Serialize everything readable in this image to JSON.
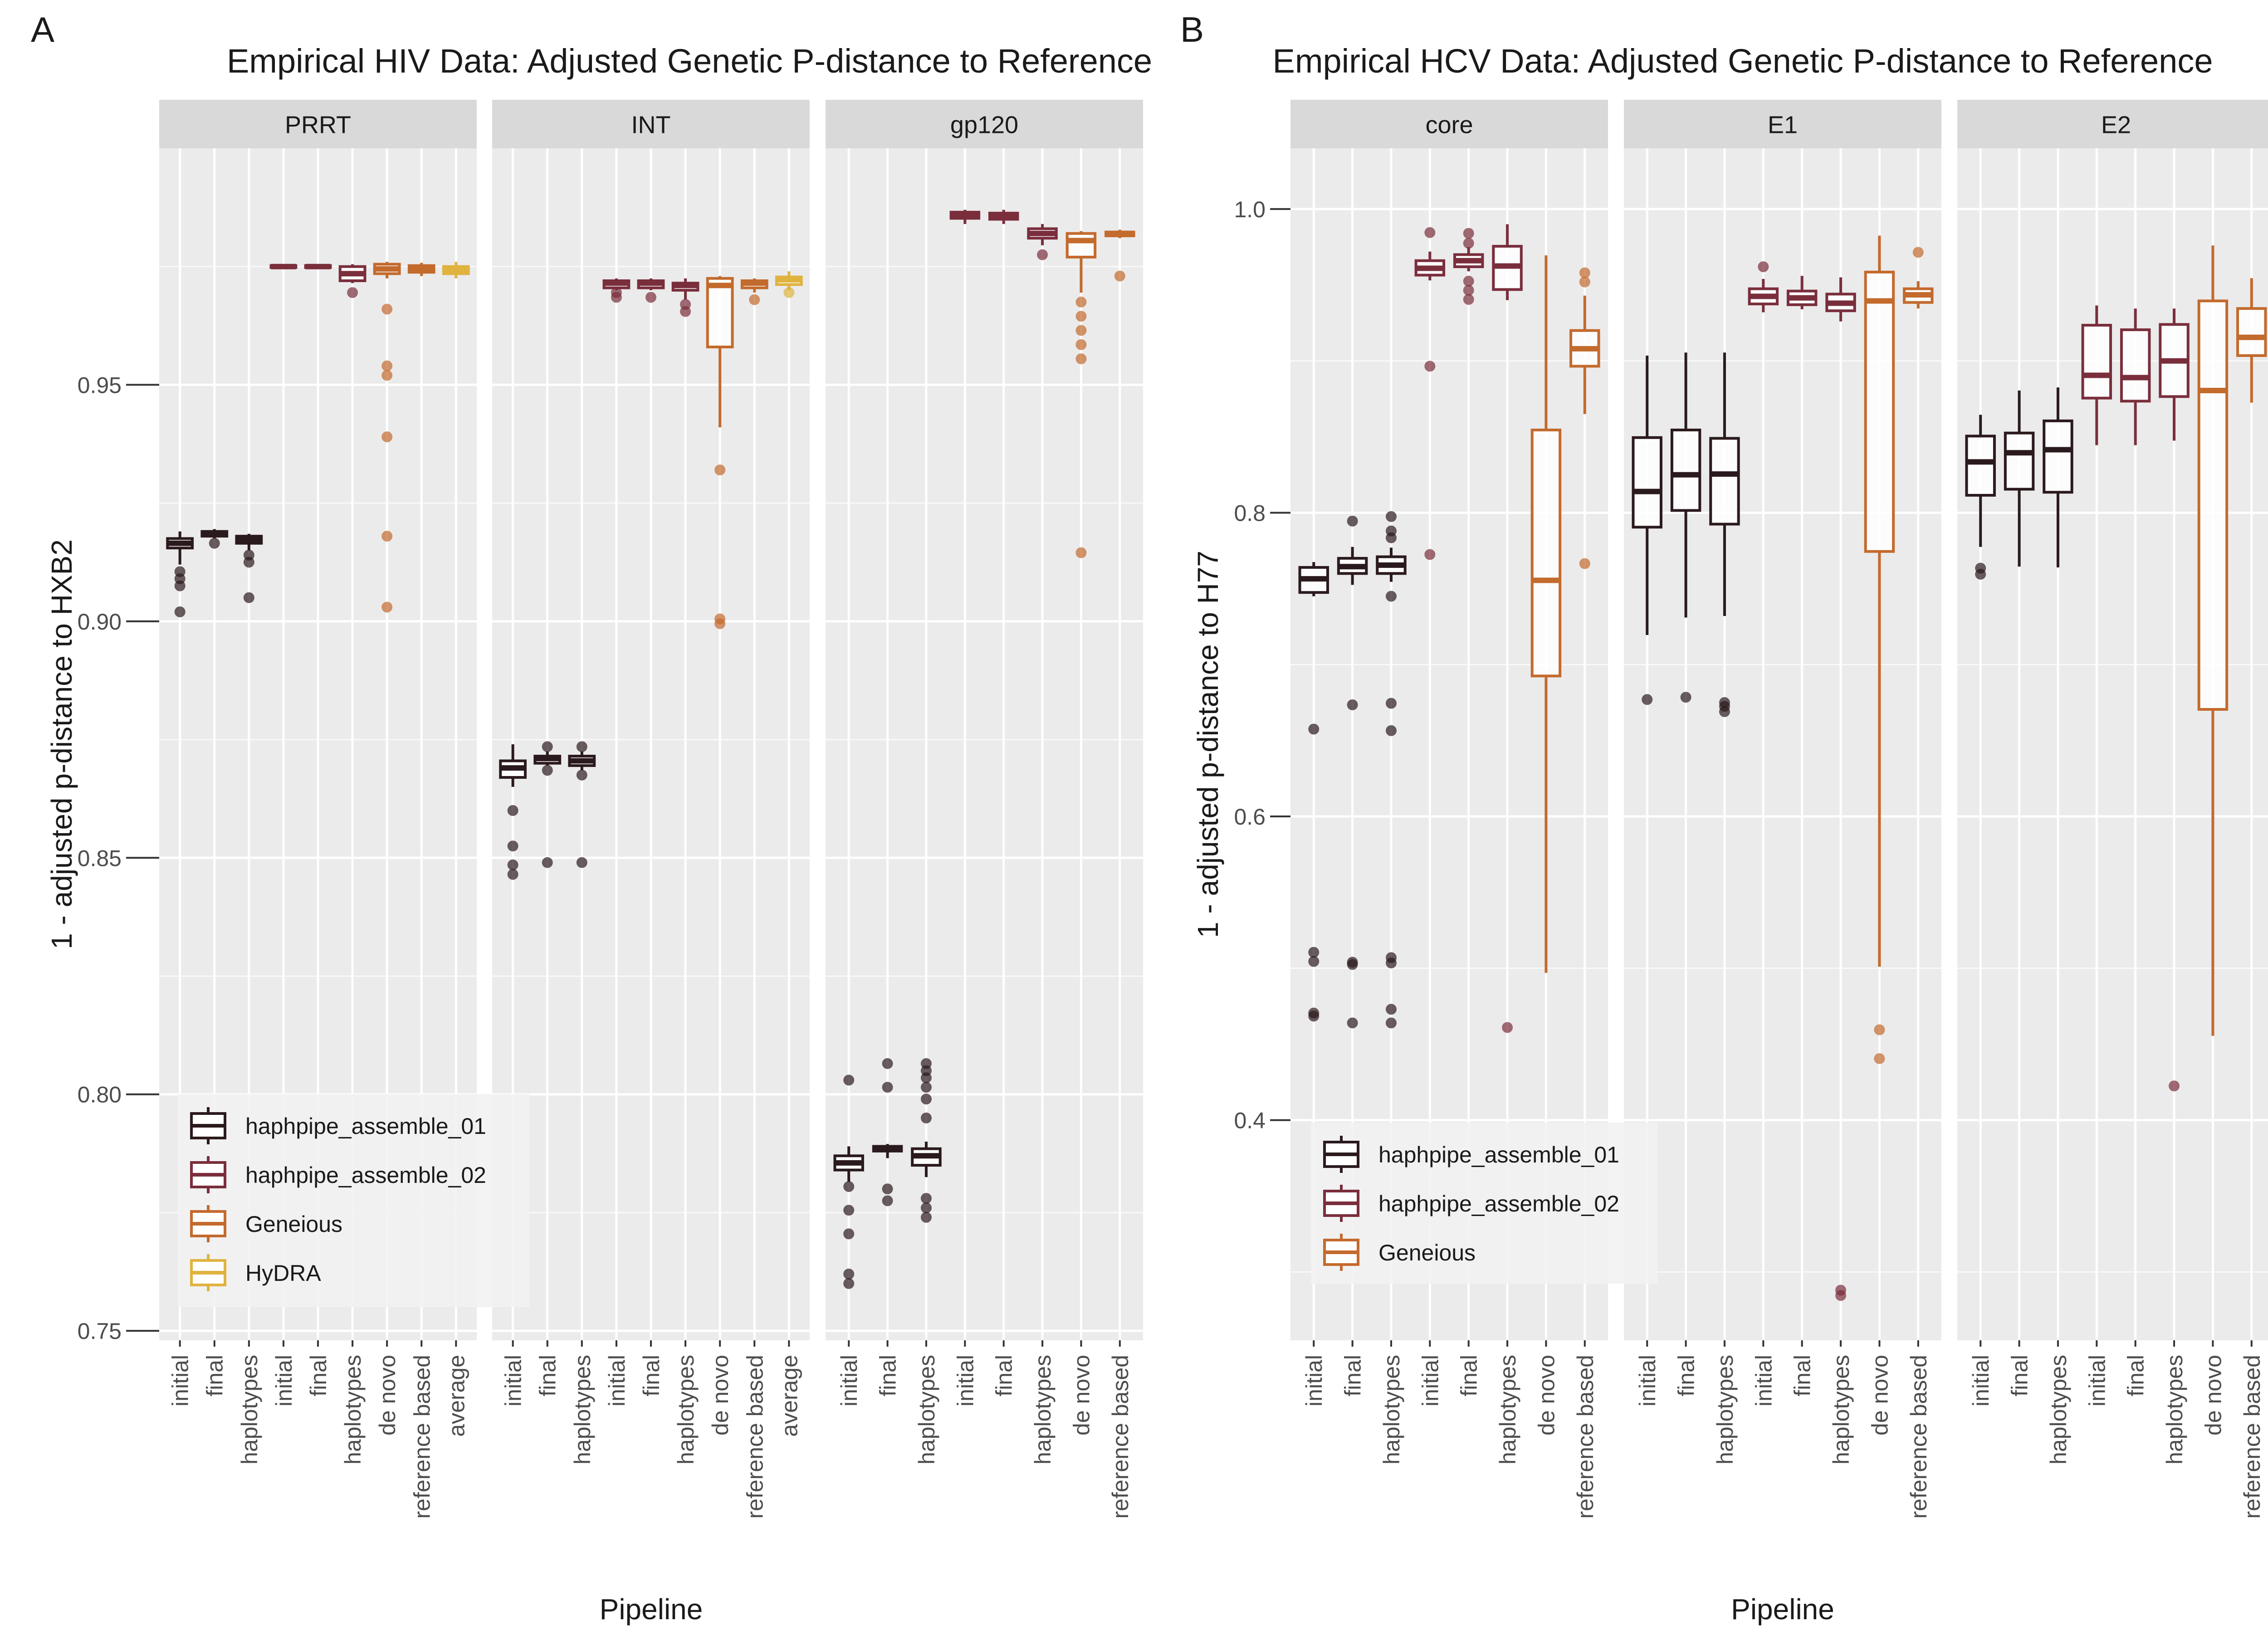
{
  "colors": {
    "haphpipe_assemble_01": "#2b1a1d",
    "haphpipe_assemble_02": "#7a2e3c",
    "Geneious": "#c36a2d",
    "HyDRA": "#e0b33e",
    "panel_bg": "#ebebeb",
    "strip_bg": "#d9d9d9",
    "grid": "#ffffff",
    "text": "#1a1a1a",
    "axis_text": "#4d4d4d"
  },
  "chart_data": [
    {
      "type": "boxplot",
      "panel_label": "A",
      "title": "Empirical HIV Data: Adjusted Genetic P-distance to Reference",
      "xlabel": "Pipeline",
      "ylabel": "1 - adjusted p-distance to HXB2",
      "ylim": [
        0.748,
        1.0
      ],
      "yticks": [
        0.75,
        0.8,
        0.85,
        0.9,
        0.95
      ],
      "ytick_labels": [
        "0.75",
        "0.80",
        "0.85",
        "0.90",
        "0.95"
      ],
      "legend": {
        "position": "bottom-left",
        "entries": [
          {
            "name": "haphpipe_assemble_01",
            "color_key": "haphpipe_assemble_01"
          },
          {
            "name": "haphpipe_assemble_02",
            "color_key": "haphpipe_assemble_02"
          },
          {
            "name": "Geneious",
            "color_key": "Geneious"
          },
          {
            "name": "HyDRA",
            "color_key": "HyDRA"
          }
        ]
      },
      "facets": [
        {
          "name": "PRRT",
          "categories": [
            "initial",
            "final",
            "haplotypes",
            "initial",
            "final",
            "haplotypes",
            "de novo",
            "reference based",
            "average"
          ],
          "boxes": [
            {
              "series": "haphpipe_assemble_01",
              "min": 0.912,
              "q1": 0.9155,
              "median": 0.9165,
              "q3": 0.9175,
              "max": 0.919,
              "outliers": [
                0.902,
                0.9075,
                0.909,
                0.9105
              ]
            },
            {
              "series": "haphpipe_assemble_01",
              "min": 0.9175,
              "q1": 0.918,
              "median": 0.9185,
              "q3": 0.919,
              "max": 0.9195,
              "outliers": [
                0.9165
              ]
            },
            {
              "series": "haphpipe_assemble_01",
              "min": 0.915,
              "q1": 0.9165,
              "median": 0.9172,
              "q3": 0.918,
              "max": 0.9185,
              "outliers": [
                0.905,
                0.9125,
                0.914
              ]
            },
            {
              "series": "haphpipe_assemble_02",
              "min": 0.9745,
              "q1": 0.9748,
              "median": 0.975,
              "q3": 0.9752,
              "max": 0.9755,
              "outliers": []
            },
            {
              "series": "haphpipe_assemble_02",
              "min": 0.9745,
              "q1": 0.9748,
              "median": 0.975,
              "q3": 0.9752,
              "max": 0.9755,
              "outliers": []
            },
            {
              "series": "haphpipe_assemble_02",
              "min": 0.9715,
              "q1": 0.972,
              "median": 0.9735,
              "q3": 0.975,
              "max": 0.9755,
              "outliers": [
                0.9695
              ]
            },
            {
              "series": "Geneious",
              "min": 0.9725,
              "q1": 0.9735,
              "median": 0.9745,
              "q3": 0.9755,
              "max": 0.976,
              "outliers": [
                0.903,
                0.918,
                0.939,
                0.952,
                0.954,
                0.966
              ]
            },
            {
              "series": "Geneious",
              "min": 0.973,
              "q1": 0.9738,
              "median": 0.9745,
              "q3": 0.9752,
              "max": 0.9758,
              "outliers": []
            },
            {
              "series": "HyDRA",
              "min": 0.9725,
              "q1": 0.9735,
              "median": 0.9742,
              "q3": 0.975,
              "max": 0.976,
              "outliers": []
            }
          ]
        },
        {
          "name": "INT",
          "categories": [
            "initial",
            "final",
            "haplotypes",
            "initial",
            "final",
            "haplotypes",
            "de novo",
            "reference based",
            "average"
          ],
          "boxes": [
            {
              "series": "haphpipe_assemble_01",
              "min": 0.865,
              "q1": 0.867,
              "median": 0.869,
              "q3": 0.8705,
              "max": 0.874,
              "outliers": [
                0.8465,
                0.8485,
                0.8525,
                0.86
              ]
            },
            {
              "series": "haphpipe_assemble_01",
              "min": 0.8695,
              "q1": 0.87,
              "median": 0.871,
              "q3": 0.8715,
              "max": 0.8725,
              "outliers": [
                0.849,
                0.8685,
                0.8735
              ]
            },
            {
              "series": "haphpipe_assemble_01",
              "min": 0.8685,
              "q1": 0.8695,
              "median": 0.8705,
              "q3": 0.8715,
              "max": 0.8725,
              "outliers": [
                0.849,
                0.8675,
                0.8735
              ]
            },
            {
              "series": "haphpipe_assemble_02",
              "min": 0.97,
              "q1": 0.9705,
              "median": 0.9715,
              "q3": 0.972,
              "max": 0.9725,
              "outliers": [
                0.9685,
                0.9695
              ]
            },
            {
              "series": "haphpipe_assemble_02",
              "min": 0.97,
              "q1": 0.9705,
              "median": 0.9715,
              "q3": 0.972,
              "max": 0.9725,
              "outliers": [
                0.9685
              ]
            },
            {
              "series": "haphpipe_assemble_02",
              "min": 0.968,
              "q1": 0.97,
              "median": 0.971,
              "q3": 0.9715,
              "max": 0.9725,
              "outliers": [
                0.9655,
                0.967
              ]
            },
            {
              "series": "Geneious",
              "min": 0.941,
              "q1": 0.958,
              "median": 0.971,
              "q3": 0.9725,
              "max": 0.973,
              "outliers": [
                0.8995,
                0.9005,
                0.932
              ]
            },
            {
              "series": "Geneious",
              "min": 0.9695,
              "q1": 0.9705,
              "median": 0.9715,
              "q3": 0.972,
              "max": 0.9725,
              "outliers": [
                0.968
              ]
            },
            {
              "series": "HyDRA",
              "min": 0.97,
              "q1": 0.9712,
              "median": 0.9722,
              "q3": 0.9728,
              "max": 0.974,
              "outliers": [
                0.9695
              ]
            }
          ]
        },
        {
          "name": "gp120",
          "categories": [
            "initial",
            "final",
            "haplotypes",
            "initial",
            "final",
            "haplotypes",
            "de novo",
            "reference based"
          ],
          "boxes": [
            {
              "series": "haphpipe_assemble_01",
              "min": 0.7815,
              "q1": 0.784,
              "median": 0.7855,
              "q3": 0.787,
              "max": 0.789,
              "outliers": [
                0.76,
                0.762,
                0.7705,
                0.7755,
                0.7805,
                0.803
              ]
            },
            {
              "series": "haphpipe_assemble_01",
              "min": 0.7865,
              "q1": 0.788,
              "median": 0.7885,
              "q3": 0.789,
              "max": 0.7895,
              "outliers": [
                0.7775,
                0.78,
                0.8015,
                0.8065
              ]
            },
            {
              "series": "haphpipe_assemble_01",
              "min": 0.7825,
              "q1": 0.785,
              "median": 0.787,
              "q3": 0.7885,
              "max": 0.79,
              "outliers": [
                0.774,
                0.776,
                0.778,
                0.795,
                0.799,
                0.8015,
                0.8035,
                0.805,
                0.8065
              ]
            },
            {
              "series": "haphpipe_assemble_02",
              "min": 0.984,
              "q1": 0.9852,
              "median": 0.9858,
              "q3": 0.9865,
              "max": 0.987,
              "outliers": []
            },
            {
              "series": "haphpipe_assemble_02",
              "min": 0.984,
              "q1": 0.985,
              "median": 0.9858,
              "q3": 0.9863,
              "max": 0.987,
              "outliers": []
            },
            {
              "series": "haphpipe_assemble_02",
              "min": 0.9795,
              "q1": 0.981,
              "median": 0.982,
              "q3": 0.983,
              "max": 0.984,
              "outliers": [
                0.9775
              ]
            },
            {
              "series": "Geneious",
              "min": 0.9695,
              "q1": 0.977,
              "median": 0.9805,
              "q3": 0.982,
              "max": 0.9825,
              "outliers": [
                0.9145,
                0.9555,
                0.9585,
                0.9615,
                0.9645,
                0.9675
              ]
            },
            {
              "series": "Geneious",
              "min": 0.981,
              "q1": 0.9815,
              "median": 0.982,
              "q3": 0.9823,
              "max": 0.9828,
              "outliers": [
                0.973
              ]
            }
          ]
        }
      ]
    },
    {
      "type": "boxplot",
      "panel_label": "B",
      "title": "Empirical HCV Data: Adjusted Genetic P-distance to Reference",
      "xlabel": "Pipeline",
      "ylabel": "1 - adjusted p-distance to H77",
      "ylim": [
        0.255,
        1.04
      ],
      "yticks": [
        0.4,
        0.6,
        0.8,
        1.0
      ],
      "ytick_labels": [
        "0.4",
        "0.6",
        "0.8",
        "1.0"
      ],
      "legend": {
        "position": "bottom-left",
        "entries": [
          {
            "name": "haphpipe_assemble_01",
            "color_key": "haphpipe_assemble_01"
          },
          {
            "name": "haphpipe_assemble_02",
            "color_key": "haphpipe_assemble_02"
          },
          {
            "name": "Geneious",
            "color_key": "Geneious"
          }
        ]
      },
      "facets": [
        {
          "name": "core",
          "categories": [
            "initial",
            "final",
            "haplotypes",
            "initial",
            "final",
            "haplotypes",
            "de novo",
            "reference based"
          ],
          "boxes": [
            {
              "series": "haphpipe_assemble_01",
              "min": 0.745,
              "q1": 0.7475,
              "median": 0.7565,
              "q3": 0.764,
              "max": 0.7675,
              "outliers": [
                0.4685,
                0.4705,
                0.5045,
                0.5105,
                0.6575
              ]
            },
            {
              "series": "haphpipe_assemble_01",
              "min": 0.7525,
              "q1": 0.76,
              "median": 0.7645,
              "q3": 0.77,
              "max": 0.7775,
              "outliers": [
                0.464,
                0.5025,
                0.504,
                0.6735,
                0.7945
              ]
            },
            {
              "series": "haphpipe_assemble_01",
              "min": 0.7545,
              "q1": 0.76,
              "median": 0.7655,
              "q3": 0.771,
              "max": 0.777,
              "outliers": [
                0.464,
                0.473,
                0.5035,
                0.507,
                0.6565,
                0.6745,
                0.745,
                0.7835,
                0.788,
                0.7975
              ]
            },
            {
              "series": "haphpipe_assemble_02",
              "min": 0.953,
              "q1": 0.9565,
              "median": 0.961,
              "q3": 0.966,
              "max": 0.972,
              "outliers": [
                0.7725,
                0.8965,
                0.9845
              ]
            },
            {
              "series": "haphpipe_assemble_02",
              "min": 0.959,
              "q1": 0.962,
              "median": 0.966,
              "q3": 0.97,
              "max": 0.975,
              "outliers": [
                0.9405,
                0.9465,
                0.9525,
                0.9775,
                0.984
              ]
            },
            {
              "series": "haphpipe_assemble_02",
              "min": 0.94,
              "q1": 0.947,
              "median": 0.9625,
              "q3": 0.9755,
              "max": 0.99,
              "outliers": [
                0.461
              ]
            },
            {
              "series": "Geneious",
              "min": 0.497,
              "q1": 0.6925,
              "median": 0.7555,
              "q3": 0.8545,
              "max": 0.9695,
              "outliers": []
            },
            {
              "series": "Geneious",
              "min": 0.865,
              "q1": 0.8965,
              "median": 0.908,
              "q3": 0.92,
              "max": 0.943,
              "outliers": [
                0.7665,
                0.952,
                0.958
              ]
            }
          ]
        },
        {
          "name": "E1",
          "categories": [
            "initial",
            "final",
            "haplotypes",
            "initial",
            "final",
            "haplotypes",
            "de novo",
            "reference based"
          ],
          "boxes": [
            {
              "series": "haphpipe_assemble_01",
              "min": 0.7195,
              "q1": 0.7905,
              "median": 0.814,
              "q3": 0.8495,
              "max": 0.9035,
              "outliers": [
                0.677
              ]
            },
            {
              "series": "haphpipe_assemble_01",
              "min": 0.731,
              "q1": 0.8015,
              "median": 0.825,
              "q3": 0.8545,
              "max": 0.9055,
              "outliers": [
                0.6785
              ]
            },
            {
              "series": "haphpipe_assemble_01",
              "min": 0.732,
              "q1": 0.7925,
              "median": 0.8255,
              "q3": 0.849,
              "max": 0.9055,
              "outliers": [
                0.669,
                0.6725,
                0.675
              ]
            },
            {
              "series": "haphpipe_assemble_02",
              "min": 0.932,
              "q1": 0.9375,
              "median": 0.9425,
              "q3": 0.9475,
              "max": 0.954,
              "outliers": [
                0.962
              ]
            },
            {
              "series": "haphpipe_assemble_02",
              "min": 0.934,
              "q1": 0.937,
              "median": 0.9415,
              "q3": 0.946,
              "max": 0.956,
              "outliers": []
            },
            {
              "series": "haphpipe_assemble_02",
              "min": 0.926,
              "q1": 0.933,
              "median": 0.938,
              "q3": 0.944,
              "max": 0.955,
              "outliers": [
                0.2845,
                0.288
              ]
            },
            {
              "series": "Geneious",
              "min": 0.501,
              "q1": 0.7745,
              "median": 0.9395,
              "q3": 0.9585,
              "max": 0.9825,
              "outliers": [
                0.4405,
                0.4595
              ]
            },
            {
              "series": "Geneious",
              "min": 0.9345,
              "q1": 0.9385,
              "median": 0.9435,
              "q3": 0.9475,
              "max": 0.9525,
              "outliers": [
                0.9715
              ]
            }
          ]
        },
        {
          "name": "E2",
          "categories": [
            "initial",
            "final",
            "haplotypes",
            "initial",
            "final",
            "haplotypes",
            "de novo",
            "reference based"
          ],
          "boxes": [
            {
              "series": "haphpipe_assemble_01",
              "min": 0.7775,
              "q1": 0.8115,
              "median": 0.8335,
              "q3": 0.8505,
              "max": 0.8645,
              "outliers": [
                0.7595,
                0.7635
              ]
            },
            {
              "series": "haphpipe_assemble_01",
              "min": 0.7645,
              "q1": 0.8155,
              "median": 0.8395,
              "q3": 0.8525,
              "max": 0.8805,
              "outliers": []
            },
            {
              "series": "haphpipe_assemble_01",
              "min": 0.764,
              "q1": 0.8135,
              "median": 0.8415,
              "q3": 0.8605,
              "max": 0.8825,
              "outliers": []
            },
            {
              "series": "haphpipe_assemble_02",
              "min": 0.8445,
              "q1": 0.8755,
              "median": 0.8905,
              "q3": 0.9235,
              "max": 0.9365,
              "outliers": []
            },
            {
              "series": "haphpipe_assemble_02",
              "min": 0.8445,
              "q1": 0.8735,
              "median": 0.889,
              "q3": 0.9205,
              "max": 0.9345,
              "outliers": []
            },
            {
              "series": "haphpipe_assemble_02",
              "min": 0.8475,
              "q1": 0.8765,
              "median": 0.9,
              "q3": 0.924,
              "max": 0.9345,
              "outliers": [
                0.4225
              ]
            },
            {
              "series": "Geneious",
              "min": 0.4555,
              "q1": 0.6705,
              "median": 0.8805,
              "q3": 0.9395,
              "max": 0.976,
              "outliers": []
            },
            {
              "series": "Geneious",
              "min": 0.8725,
              "q1": 0.9035,
              "median": 0.9155,
              "q3": 0.9345,
              "max": 0.9545,
              "outliers": []
            }
          ]
        }
      ]
    }
  ]
}
